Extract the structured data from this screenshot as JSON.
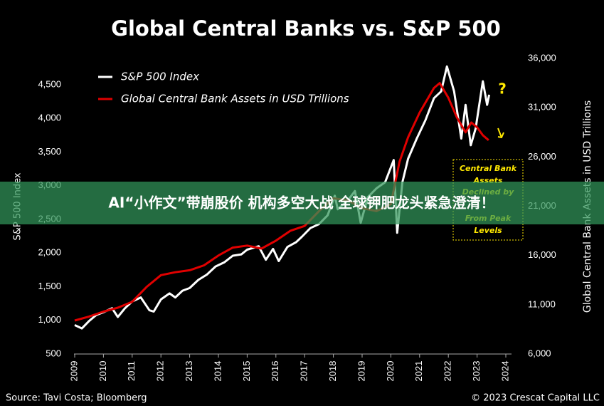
{
  "chart_data": {
    "type": "line",
    "title": "Global Central Banks vs. S&P 500",
    "y_label": "S&P 500 Index",
    "y2_label": "Global Central Bank Assets in USD Trillions",
    "source": "Source: Tavi Costa; Bloomberg",
    "copyright": "© 2023 Crescat Capital LLC",
    "annotation_mark": "?",
    "annotation_box": [
      "Central Bank",
      "Assets",
      "Declined by",
      "From Peak",
      "Levels"
    ],
    "xlim": [
      2009,
      2024
    ],
    "xticks": [
      2009,
      2010,
      2011,
      2012,
      2013,
      2014,
      2015,
      2016,
      2017,
      2018,
      2019,
      2020,
      2021,
      2022,
      2023,
      2024
    ],
    "ylim": [
      500,
      4890
    ],
    "yticks": [
      500,
      {
        "value": 1000,
        "label": "1,000"
      },
      {
        "value": 1500,
        "label": "1,500"
      },
      {
        "value": 2000,
        "label": "2,000"
      },
      {
        "value": 2500,
        "label": "2,500"
      },
      {
        "value": 3000,
        "label": "3,000"
      },
      {
        "value": 3500,
        "label": "3,500"
      },
      {
        "value": 4000,
        "label": "4,000"
      },
      {
        "value": 4500,
        "label": "4,500"
      }
    ],
    "y2lim": [
      6000,
      36000
    ],
    "y2ticks": [
      {
        "value": 6000,
        "label": "6,000"
      },
      {
        "value": 11000,
        "label": "11,000"
      },
      {
        "value": 16000,
        "label": "16,000"
      },
      {
        "value": 21000,
        "label": "21,000"
      },
      {
        "value": 26000,
        "label": "26,000"
      },
      {
        "value": 31000,
        "label": "31,000"
      },
      {
        "value": 36000,
        "label": "36,000"
      }
    ],
    "series": [
      {
        "name": "S&P 500 Index",
        "color": "#ffffff",
        "axis": "y",
        "x": [
          2009.0,
          2009.25,
          2009.5,
          2009.75,
          2010.0,
          2010.3,
          2010.5,
          2010.75,
          2011.0,
          2011.3,
          2011.6,
          2011.75,
          2012.0,
          2012.3,
          2012.5,
          2012.75,
          2013.0,
          2013.3,
          2013.6,
          2013.9,
          2014.2,
          2014.5,
          2014.8,
          2015.0,
          2015.4,
          2015.65,
          2015.9,
          2016.1,
          2016.4,
          2016.7,
          2016.9,
          2017.2,
          2017.5,
          2017.8,
          2018.05,
          2018.15,
          2018.5,
          2018.75,
          2018.95,
          2019.2,
          2019.5,
          2019.8,
          2020.1,
          2020.22,
          2020.4,
          2020.6,
          2020.9,
          2021.2,
          2021.5,
          2021.75,
          2021.95,
          2022.2,
          2022.45,
          2022.6,
          2022.78,
          2022.95,
          2023.2,
          2023.35,
          2023.42
        ],
        "values": [
          930,
          880,
          990,
          1080,
          1120,
          1180,
          1050,
          1180,
          1280,
          1340,
          1150,
          1130,
          1310,
          1400,
          1340,
          1440,
          1480,
          1600,
          1680,
          1800,
          1860,
          1960,
          1980,
          2050,
          2100,
          1900,
          2060,
          1880,
          2090,
          2160,
          2240,
          2370,
          2430,
          2560,
          2850,
          2650,
          2780,
          2920,
          2450,
          2830,
          2960,
          3050,
          3380,
          2300,
          3050,
          3400,
          3700,
          3970,
          4300,
          4400,
          4770,
          4400,
          3700,
          4200,
          3600,
          3850,
          4550,
          4200,
          4350
        ]
      },
      {
        "name": "Global Central Bank Assets in USD Trillions",
        "color": "#e00000",
        "axis": "y2",
        "x": [
          2009.0,
          2009.5,
          2010.0,
          2010.5,
          2011.0,
          2011.5,
          2012.0,
          2012.5,
          2013.0,
          2013.5,
          2014.0,
          2014.5,
          2015.0,
          2015.5,
          2016.0,
          2016.5,
          2017.0,
          2017.5,
          2018.0,
          2018.5,
          2019.0,
          2019.5,
          2020.0,
          2020.3,
          2020.6,
          2021.0,
          2021.5,
          2021.7,
          2022.0,
          2022.3,
          2022.6,
          2022.8,
          2023.0,
          2023.2,
          2023.4
        ],
        "values": [
          9400,
          9800,
          10300,
          10700,
          11300,
          12800,
          14000,
          14300,
          14500,
          15000,
          16000,
          16800,
          17000,
          16700,
          17500,
          18500,
          19000,
          20500,
          21800,
          21600,
          20800,
          20500,
          21200,
          25500,
          28000,
          30500,
          33000,
          33500,
          32000,
          30000,
          28500,
          29500,
          29000,
          28200,
          27700
        ]
      }
    ]
  },
  "banner": {
    "text": "AI“小作文”带崩股价 机构多空大战 全球钾肥龙头紧急澄清！"
  }
}
